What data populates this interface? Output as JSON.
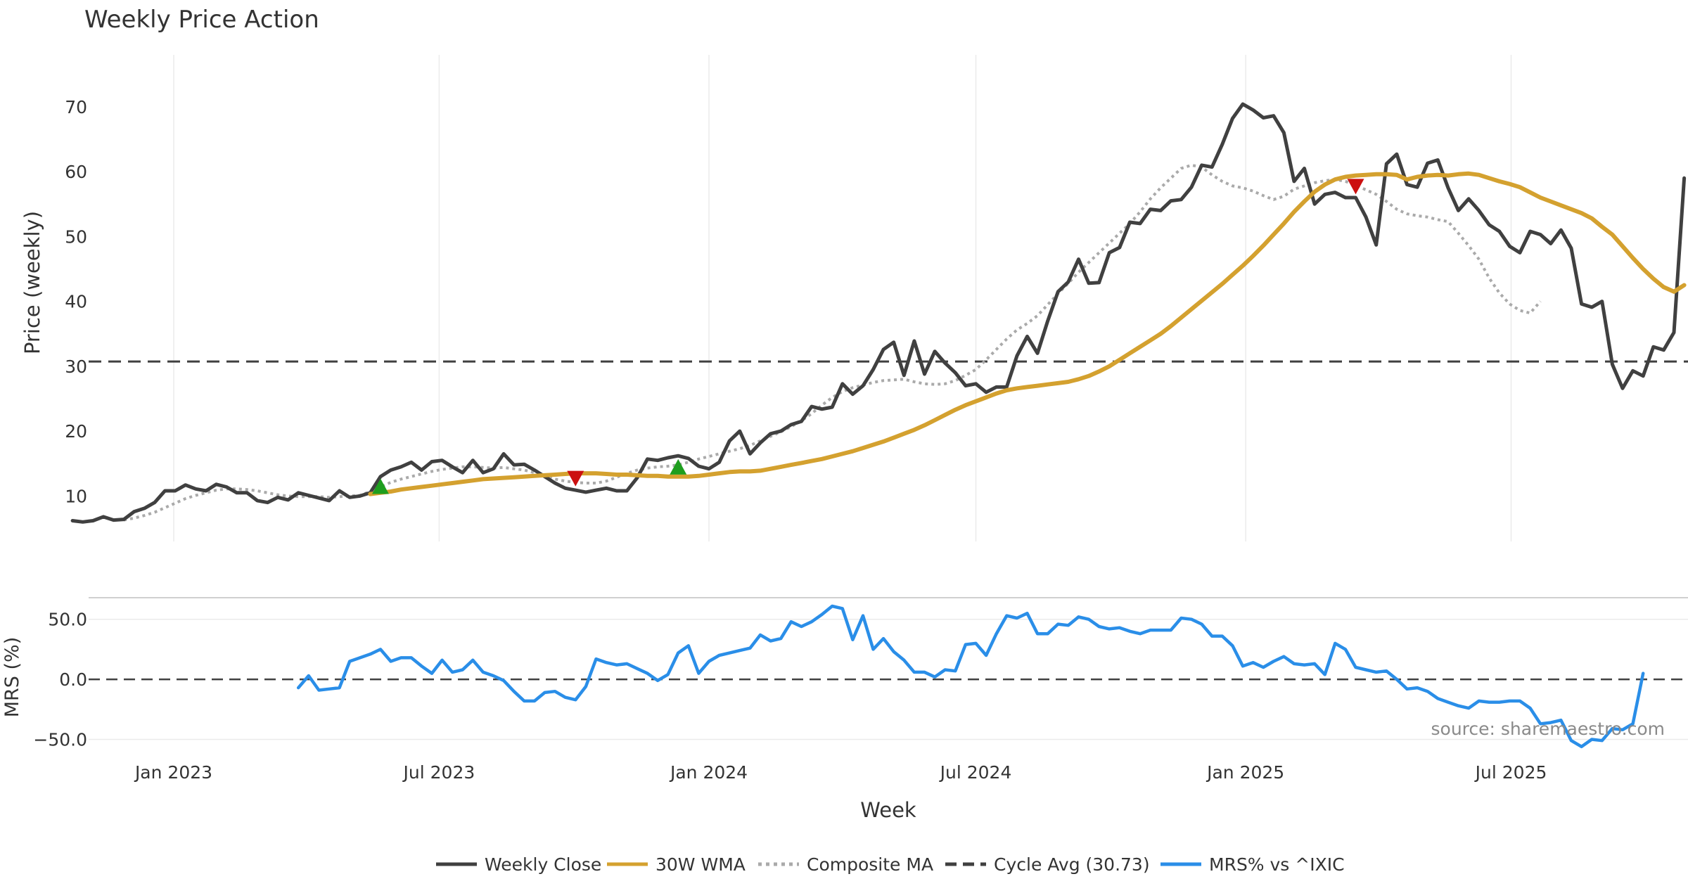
{
  "chart_data": [
    {
      "type": "line",
      "title": "Weekly Price Action",
      "ylabel": "Price (weekly)",
      "xlabel": "",
      "ylim": [
        3,
        78
      ],
      "yticks": [
        10,
        20,
        30,
        40,
        50,
        60,
        70
      ],
      "x_start": "2022-10-24",
      "x_step_days": 7,
      "xticks": [
        {
          "date": "2023-01-01",
          "label": "Jan 2023"
        },
        {
          "date": "2023-07-01",
          "label": "Jul 2023"
        },
        {
          "date": "2024-01-01",
          "label": "Jan 2024"
        },
        {
          "date": "2024-07-01",
          "label": "Jul 2024"
        },
        {
          "date": "2025-01-01",
          "label": "Jan 2025"
        },
        {
          "date": "2025-07-01",
          "label": "Jul 2025"
        }
      ],
      "grid": "vertical",
      "cycle_avg": 30.73,
      "series": [
        {
          "name": "Weekly Close",
          "color": "#404040",
          "style": "solid",
          "values": [
            6.2,
            6.0,
            6.2,
            6.8,
            6.3,
            6.4,
            7.6,
            8.1,
            9.0,
            10.8,
            10.8,
            11.7,
            11.1,
            10.8,
            11.8,
            11.4,
            10.5,
            10.5,
            9.3,
            9.0,
            9.8,
            9.4,
            10.5,
            10.1,
            9.7,
            9.3,
            10.8,
            9.8,
            10.0,
            10.5,
            13.0,
            14.0,
            14.5,
            15.2,
            14.0,
            15.3,
            15.5,
            14.5,
            13.6,
            15.5,
            13.6,
            14.2,
            16.5,
            14.8,
            14.9,
            14.0,
            13.0,
            12.0,
            11.2,
            10.9,
            10.6,
            10.9,
            11.2,
            10.8,
            10.8,
            12.8,
            15.7,
            15.5,
            15.9,
            16.2,
            15.8,
            14.6,
            14.2,
            15.2,
            18.5,
            20.0,
            16.5,
            18.2,
            19.6,
            20.0,
            21.0,
            21.5,
            23.8,
            23.4,
            23.7,
            27.3,
            25.7,
            27.0,
            29.5,
            32.6,
            33.7,
            28.6,
            33.9,
            28.8,
            32.3,
            30.5,
            29.0,
            27.0,
            27.3,
            26.0,
            26.8,
            26.8,
            31.6,
            34.6,
            32.0,
            37.0,
            41.5,
            43.0,
            46.5,
            42.8,
            42.9,
            47.5,
            48.3,
            52.2,
            52.0,
            54.2,
            54.0,
            55.5,
            55.7,
            57.6,
            61.0,
            60.7,
            64.2,
            68.2,
            70.4,
            69.5,
            68.3,
            68.6,
            66.0,
            58.5,
            60.5,
            55.0,
            56.5,
            56.8,
            56.0,
            56.0,
            53.0,
            48.7,
            61.2,
            62.7,
            58.0,
            57.6,
            61.3,
            61.8,
            57.5,
            54.0,
            55.8,
            54.0,
            51.8,
            50.8,
            48.5,
            47.5,
            50.8,
            50.3,
            48.9,
            51.0,
            48.2,
            39.6,
            39.1,
            40.0,
            30.3,
            26.6,
            29.3,
            28.5,
            33.0,
            32.5,
            35.2,
            59.0
          ]
        },
        {
          "name": "30W WMA",
          "color": "#D4A12F",
          "style": "solid",
          "start_index": 29,
          "values": [
            10.3,
            10.5,
            10.7,
            11.0,
            11.2,
            11.4,
            11.6,
            11.8,
            12.0,
            12.2,
            12.4,
            12.6,
            12.7,
            12.8,
            12.9,
            13.0,
            13.1,
            13.2,
            13.3,
            13.4,
            13.5,
            13.5,
            13.5,
            13.4,
            13.3,
            13.3,
            13.2,
            13.1,
            13.1,
            13.0,
            13.0,
            13.0,
            13.1,
            13.3,
            13.5,
            13.7,
            13.8,
            13.8,
            13.9,
            14.2,
            14.5,
            14.8,
            15.1,
            15.4,
            15.7,
            16.1,
            16.5,
            16.9,
            17.4,
            17.9,
            18.4,
            19.0,
            19.6,
            20.2,
            20.9,
            21.7,
            22.5,
            23.3,
            24.0,
            24.6,
            25.2,
            25.8,
            26.3,
            26.6,
            26.8,
            27.0,
            27.2,
            27.4,
            27.6,
            28.0,
            28.5,
            29.2,
            30.0,
            31.0,
            32.0,
            33.0,
            34.0,
            35.0,
            36.2,
            37.5,
            38.8,
            40.1,
            41.4,
            42.7,
            44.1,
            45.5,
            47.0,
            48.6,
            50.3,
            52.0,
            53.8,
            55.4,
            56.9,
            58.0,
            58.8,
            59.2,
            59.4,
            59.5,
            59.6,
            59.6,
            59.5,
            58.8,
            59.2,
            59.4,
            59.5,
            59.4,
            59.6,
            59.7,
            59.5,
            59.0,
            58.5,
            58.1,
            57.6,
            56.8,
            56.0,
            55.4,
            54.8,
            54.2,
            53.6,
            52.8,
            51.5,
            50.3,
            48.5,
            46.7,
            45.0,
            43.5,
            42.2,
            41.5,
            42.5
          ]
        },
        {
          "name": "Composite MA",
          "color": "#AAAAAA",
          "style": "dotted",
          "start_index": 5,
          "values": [
            6.3,
            6.6,
            7.0,
            7.5,
            8.2,
            8.9,
            9.6,
            10.1,
            10.5,
            10.9,
            11.1,
            11.1,
            11.0,
            10.8,
            10.5,
            10.2,
            10.0,
            9.9,
            9.9,
            9.9,
            9.8,
            9.9,
            10.0,
            10.1,
            10.7,
            11.4,
            12.1,
            12.6,
            13.0,
            13.4,
            13.8,
            14.1,
            14.3,
            14.5,
            14.5,
            14.4,
            14.3,
            14.4,
            14.2,
            14.0,
            13.6,
            13.1,
            12.6,
            12.3,
            12.1,
            12.0,
            12.0,
            12.3,
            12.9,
            13.5,
            14.0,
            14.3,
            14.5,
            14.6,
            14.8,
            15.2,
            15.7,
            16.1,
            16.5,
            16.9,
            17.3,
            17.8,
            18.5,
            19.2,
            19.9,
            20.7,
            21.6,
            22.7,
            24.0,
            25.2,
            26.1,
            26.7,
            27.1,
            27.5,
            27.8,
            27.9,
            28.0,
            27.6,
            27.3,
            27.2,
            27.3,
            27.8,
            28.6,
            29.5,
            31.0,
            32.6,
            34.2,
            35.6,
            36.6,
            37.8,
            39.5,
            41.2,
            42.8,
            44.5,
            46.0,
            47.5,
            49.0,
            50.5,
            52.0,
            53.8,
            55.8,
            57.5,
            59.0,
            60.5,
            61.0,
            60.7,
            59.5,
            58.5,
            57.8,
            57.5,
            57.0,
            56.3,
            55.7,
            56.2,
            57.3,
            57.8,
            58.3,
            58.6,
            58.8,
            58.5,
            57.9,
            57.2,
            56.5,
            55.4,
            54.2,
            53.5,
            53.2,
            53.0,
            52.6,
            52.3,
            50.5,
            48.6,
            46.5,
            43.6,
            41.3,
            39.6,
            38.6,
            38.2,
            40.0
          ]
        }
      ],
      "signals": [
        {
          "index": 30,
          "type": "buy",
          "value": 11.4,
          "color": "#1E9E1E"
        },
        {
          "index": 49,
          "type": "sell",
          "value": 12.8,
          "color": "#CC1010"
        },
        {
          "index": 59,
          "type": "buy",
          "value": 14.4,
          "color": "#1E9E1E"
        },
        {
          "index": 125,
          "type": "sell",
          "value": 57.8,
          "color": "#CC1010"
        }
      ]
    },
    {
      "type": "line",
      "title": "",
      "ylabel": "MRS (%)",
      "xlabel": "Week",
      "ylim": [
        -62,
        68
      ],
      "yticks": [
        {
          "value": 50,
          "label": "50.0"
        },
        {
          "value": 0,
          "label": "0.0"
        },
        {
          "value": -50,
          "label": "−50.0"
        }
      ],
      "zero_line": 0,
      "series": [
        {
          "name": "MRS% vs ^IXIC",
          "color": "#2A8EE8",
          "style": "solid",
          "start_index": 22,
          "values": [
            -7,
            3,
            -9,
            -8,
            -7,
            15,
            18,
            21,
            25,
            15,
            18,
            18,
            11,
            5,
            16,
            6,
            8,
            16,
            6,
            3,
            -1,
            -10,
            -18,
            -18,
            -11,
            -10,
            -15,
            -17,
            -6,
            17,
            14,
            12,
            13,
            9,
            5,
            -1,
            4,
            22,
            28,
            5,
            15,
            20,
            22,
            24,
            26,
            37,
            32,
            34,
            48,
            44,
            48,
            54,
            61,
            59,
            33,
            53,
            25,
            34,
            23,
            16,
            6,
            6,
            2,
            8,
            7,
            29,
            30,
            20,
            38,
            53,
            51,
            55,
            38,
            38,
            46,
            45,
            52,
            50,
            44,
            42,
            43,
            40,
            38,
            41,
            41,
            41,
            51,
            50,
            46,
            36,
            36,
            28,
            11,
            14,
            10,
            15,
            19,
            13,
            12,
            13,
            4,
            30,
            25,
            10,
            8,
            6,
            7,
            0,
            -8,
            -7,
            -10,
            -16,
            -19,
            -22,
            -24,
            -18,
            -19,
            -19,
            -18,
            -18,
            -24,
            -37,
            -36,
            -34,
            -51,
            -56,
            -50,
            -51,
            -41,
            -42,
            -37,
            5
          ]
        }
      ],
      "annotation": "source: sharemaestro.com"
    }
  ],
  "legend": [
    {
      "label": "Weekly Close",
      "color": "#404040",
      "style": "solid"
    },
    {
      "label": "30W WMA",
      "color": "#D4A12F",
      "style": "solid"
    },
    {
      "label": "Composite MA",
      "color": "#AAAAAA",
      "style": "dotted"
    },
    {
      "label": "Cycle Avg (30.73)",
      "color": "#404040",
      "style": "dashed"
    },
    {
      "label": "MRS% vs ^IXIC",
      "color": "#2A8EE8",
      "style": "solid"
    }
  ]
}
